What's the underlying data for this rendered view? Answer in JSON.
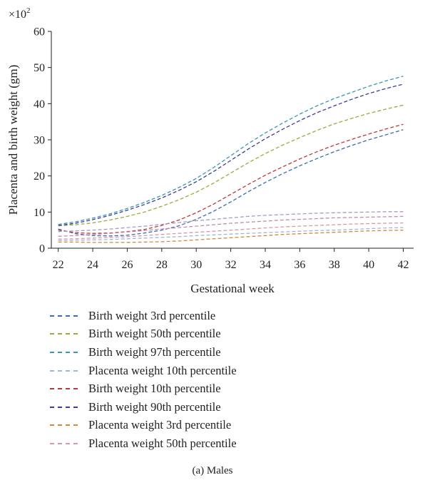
{
  "chart_data": {
    "type": "line",
    "xlabel": "Gestational week",
    "ylabel": "Placenta and birth weight (gm)",
    "y_multiplier": "×10",
    "y_multiplier_exp": "2",
    "xlim": [
      21.6,
      42.6
    ],
    "ylim": [
      0,
      60
    ],
    "xticks": [
      22,
      24,
      26,
      28,
      30,
      32,
      34,
      36,
      38,
      40,
      42
    ],
    "yticks": [
      0,
      10,
      20,
      30,
      40,
      50,
      60
    ],
    "grid": false,
    "line_style": "dashed",
    "legend_position": "bottom",
    "x": [
      22,
      23,
      24,
      25,
      26,
      27,
      28,
      29,
      30,
      31,
      32,
      33,
      34,
      35,
      36,
      37,
      38,
      39,
      40,
      41,
      42
    ],
    "series": [
      {
        "name": "Birth weight 3rd percentile",
        "color": "#3b6bb5",
        "values": [
          5.3,
          4.0,
          3.5,
          3.4,
          3.6,
          4.2,
          5.0,
          6.2,
          8.0,
          10.2,
          12.8,
          15.6,
          18.2,
          20.6,
          22.8,
          24.8,
          26.7,
          28.4,
          30.0,
          31.4,
          32.8
        ]
      },
      {
        "name": "Birth weight 50th percentile",
        "color": "#9aab3c",
        "values": [
          6.2,
          6.5,
          7.0,
          7.8,
          8.8,
          10.0,
          11.6,
          13.4,
          15.5,
          18.0,
          20.8,
          23.6,
          26.2,
          28.5,
          30.6,
          32.6,
          34.4,
          35.9,
          37.3,
          38.5,
          39.6
        ]
      },
      {
        "name": "Birth weight 97th percentile",
        "color": "#3a95b8",
        "values": [
          6.6,
          7.3,
          8.3,
          9.5,
          11.0,
          12.7,
          14.6,
          16.8,
          19.3,
          22.3,
          25.6,
          28.9,
          31.9,
          34.6,
          37.1,
          39.4,
          41.4,
          43.1,
          44.8,
          46.3,
          47.6
        ]
      },
      {
        "name": "Placenta weight 10th percentile",
        "color": "#9db8d6",
        "values": [
          2.1,
          2.2,
          2.3,
          2.4,
          2.6,
          2.8,
          3.0,
          3.2,
          3.5,
          3.7,
          3.9,
          4.1,
          4.3,
          4.5,
          4.7,
          4.9,
          5.0,
          5.2,
          5.4,
          5.6,
          5.7
        ]
      },
      {
        "name": "Birth weight 10th percentile",
        "color": "#b83a3a",
        "values": [
          5.0,
          4.3,
          4.1,
          4.2,
          4.6,
          5.2,
          6.3,
          7.8,
          9.8,
          12.2,
          14.9,
          17.6,
          20.2,
          22.5,
          24.7,
          26.7,
          28.5,
          30.1,
          31.6,
          33.0,
          34.3
        ]
      },
      {
        "name": "Birth weight 90th percentile",
        "color": "#3a3e9a",
        "values": [
          6.3,
          6.9,
          7.9,
          9.1,
          10.5,
          12.1,
          13.9,
          16.0,
          18.4,
          21.2,
          24.3,
          27.4,
          30.3,
          32.9,
          35.3,
          37.5,
          39.4,
          41.2,
          42.8,
          44.2,
          45.4
        ]
      },
      {
        "name": "Placenta weight 3rd percentile",
        "color": "#d4893a",
        "values": [
          1.7,
          1.7,
          1.6,
          1.6,
          1.6,
          1.7,
          1.8,
          2.0,
          2.3,
          2.6,
          2.9,
          3.2,
          3.5,
          3.8,
          4.0,
          4.2,
          4.4,
          4.6,
          4.8,
          4.9,
          5.0
        ]
      },
      {
        "name": "Placenta weight 50th percentile",
        "color": "#d69aa6",
        "values": [
          2.5,
          2.6,
          2.8,
          3.0,
          3.2,
          3.5,
          3.8,
          4.1,
          4.4,
          4.7,
          5.0,
          5.3,
          5.6,
          5.9,
          6.1,
          6.3,
          6.5,
          6.7,
          6.8,
          6.9,
          7.0
        ]
      },
      {
        "name": "",
        "color": "#c28bb0",
        "values": [
          3.3,
          3.5,
          3.8,
          4.1,
          4.5,
          4.9,
          5.3,
          5.7,
          6.1,
          6.5,
          6.9,
          7.2,
          7.5,
          7.8,
          8.0,
          8.2,
          8.4,
          8.5,
          8.6,
          8.7,
          8.8
        ]
      },
      {
        "name": "",
        "color": "#a79ac8",
        "values": [
          4.6,
          4.8,
          5.0,
          5.3,
          5.7,
          6.1,
          6.6,
          7.1,
          7.6,
          8.0,
          8.4,
          8.8,
          9.1,
          9.3,
          9.5,
          9.7,
          9.8,
          9.9,
          10.0,
          10.1,
          10.1
        ]
      }
    ]
  },
  "caption": "(a)  Males"
}
